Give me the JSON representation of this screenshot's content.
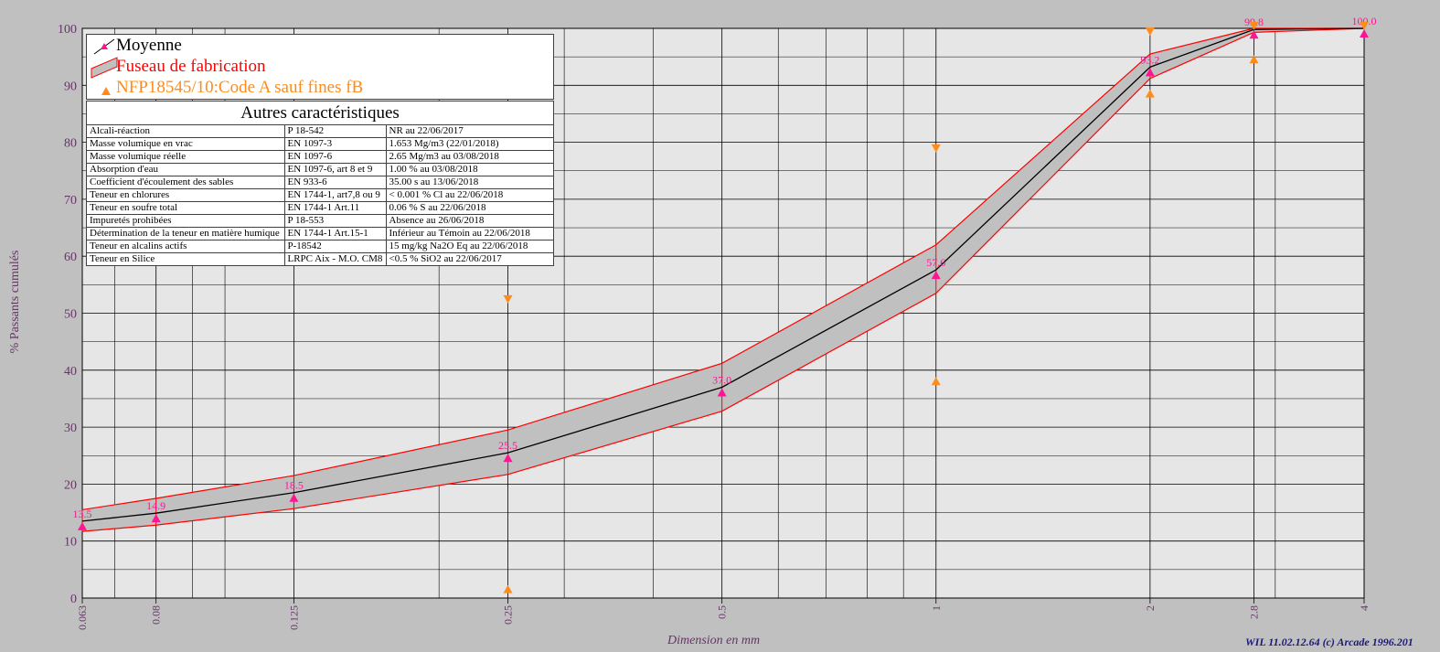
{
  "chart_data": {
    "type": "line",
    "xlabel": "Dimension en mm",
    "ylabel": "% Passants cumulés",
    "x_scale": "log",
    "xlim": [
      0.063,
      4
    ],
    "ylim": [
      0,
      100
    ],
    "grid": true,
    "x_ticks": [
      "0.063",
      "0.08",
      "0.125",
      "0.25",
      "0.5",
      "1",
      "2",
      "2.8",
      "4"
    ],
    "y_ticks": [
      "0",
      "10",
      "20",
      "30",
      "40",
      "50",
      "60",
      "70",
      "80",
      "90",
      "100"
    ],
    "colors": {
      "mean": "#000000",
      "band": "#ff0000",
      "band_fill": "#c0c0c0",
      "points": "#ff1493",
      "spec": "#ff8c1a"
    },
    "series": [
      {
        "name": "Moyenne",
        "x": [
          0.063,
          0.08,
          0.125,
          0.25,
          0.5,
          1,
          2,
          2.8,
          4
        ],
        "values": [
          13.5,
          14.9,
          18.5,
          25.5,
          37.0,
          57.6,
          93.2,
          99.8,
          100.0
        ],
        "labels": [
          "13.5",
          "14.9",
          "18.5",
          "25.5",
          "37.0",
          "57.6",
          "93.2",
          "99.8",
          "100.0"
        ]
      },
      {
        "name": "Fuseau de fabrication",
        "x": [
          0.063,
          0.08,
          0.125,
          0.25,
          0.5,
          1,
          2,
          2.8,
          4
        ],
        "upper": [
          15.5,
          17.5,
          21.5,
          29.5,
          41.2,
          62.0,
          95.5,
          100.0,
          100.0
        ],
        "lower": [
          11.7,
          12.8,
          15.7,
          21.7,
          32.8,
          53.5,
          91.2,
          99.3,
          100.0
        ]
      },
      {
        "name": "NFP18545/10:Code A sauf fines fB",
        "points": [
          {
            "x": 0.25,
            "y": 1.5,
            "dir": "up"
          },
          {
            "x": 0.25,
            "y": 52.5,
            "dir": "down"
          },
          {
            "x": 1,
            "y": 38.0,
            "dir": "up"
          },
          {
            "x": 1,
            "y": 79.0,
            "dir": "down"
          },
          {
            "x": 2,
            "y": 88.5,
            "dir": "up"
          },
          {
            "x": 2,
            "y": 99.5,
            "dir": "down"
          },
          {
            "x": 2.8,
            "y": 94.5,
            "dir": "up"
          },
          {
            "x": 2.8,
            "y": 100.5,
            "dir": "down"
          },
          {
            "x": 4,
            "y": 100.5,
            "dir": "down"
          }
        ]
      }
    ]
  },
  "legend": {
    "items": [
      {
        "label": "Moyenne",
        "color": "#000000"
      },
      {
        "label": "Fuseau de fabrication",
        "color": "#ff0000"
      },
      {
        "label": "NFP18545/10:Code A sauf fines fB",
        "color": "#ff8c1a"
      }
    ]
  },
  "characteristics": {
    "title": "Autres caractéristiques",
    "rows": [
      [
        "Alcali-réaction",
        "P 18-542",
        "NR  au 22/06/2017"
      ],
      [
        "Masse volumique en vrac",
        "EN 1097-3",
        "1.653 Mg/m3  (22/01/2018)"
      ],
      [
        "Masse volumique réelle",
        "EN 1097-6",
        "2.65 Mg/m3  au 03/08/2018"
      ],
      [
        "Absorption d'eau",
        "EN 1097-6, art 8 et 9",
        "1.00 %  au 03/08/2018"
      ],
      [
        "Coefficient d'écoulement des sables",
        "EN 933-6",
        "35.00 s  au 13/06/2018"
      ],
      [
        "Teneur en chlorures",
        "EN 1744-1, art7,8 ou 9",
        "< 0.001 % Cl  au 22/06/2018"
      ],
      [
        "Teneur en soufre total",
        "EN 1744-1 Art.11",
        "0.06 % S  au 22/06/2018"
      ],
      [
        "Impuretés prohibées",
        "P 18-553",
        "Absence  au 26/06/2018"
      ],
      [
        "Détermination de la teneur en matière humique",
        "EN 1744-1 Art.15-1",
        "Inférieur au Témoin  au 22/06/2018"
      ],
      [
        "Teneur en alcalins actifs",
        "P-18542",
        "15 mg/kg Na2O Eq  au 22/06/2018"
      ],
      [
        "Teneur en Silice",
        "LRPC Aix - M.O. CM8",
        "<0.5 % SiO2  au 22/06/2017"
      ]
    ]
  },
  "footer": {
    "credit": "WIL 11.02.12.64 (c) Arcade 1996.201"
  }
}
